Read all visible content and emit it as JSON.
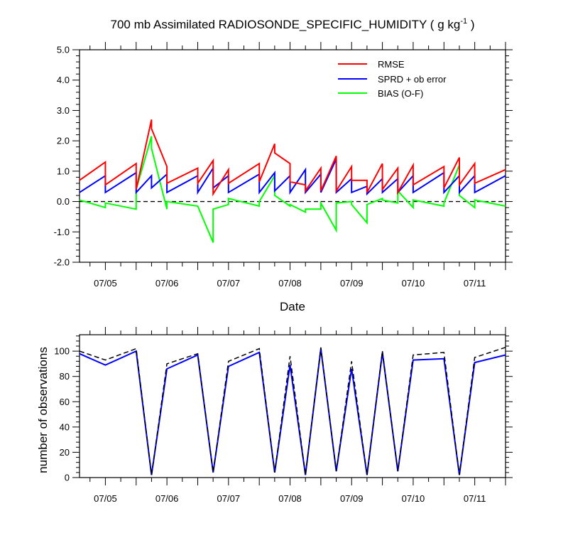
{
  "chart_data": [
    {
      "type": "line",
      "title": "700 mb Assimilated RADIOSONDE_SPECIFIC_HUMIDITY ( g kg",
      "title_unit_exponent": "-1",
      "title_close": " )",
      "xlabel": "Date",
      "ylabel": "",
      "ylim": [
        -2.0,
        5.0
      ],
      "yticks": [
        -2.0,
        -1.0,
        0.0,
        1.0,
        2.0,
        3.0,
        4.0,
        5.0
      ],
      "ytick_labels": [
        "-2.0",
        "-1.0",
        "0.0",
        "1.0",
        "2.0",
        "3.0",
        "4.0",
        "5.0"
      ],
      "x_range": [
        4.58,
        11.5
      ],
      "xticks": [
        5,
        6,
        7,
        8,
        9,
        10,
        11
      ],
      "xtick_labels": [
        "07/05",
        "07/06",
        "07/07",
        "07/08",
        "07/09",
        "07/10",
        "07/11"
      ],
      "reference_line": 0.0,
      "legend_position": "top-right",
      "series": [
        {
          "name": "RMSE",
          "color": "#ff0000",
          "x": [
            4.58,
            5.0,
            5.0,
            5.5,
            5.5,
            5.75,
            5.75,
            6.0,
            6.0,
            6.5,
            6.5,
            6.75,
            6.75,
            7.0,
            7.0,
            7.5,
            7.5,
            7.75,
            7.75,
            8.0,
            8.0,
            8.25,
            8.25,
            8.5,
            8.5,
            8.75,
            8.75,
            9.0,
            9.0,
            9.25,
            9.25,
            9.5,
            9.5,
            9.75,
            9.75,
            10.0,
            10.0,
            10.5,
            10.5,
            10.75,
            10.75,
            11.0,
            11.0,
            11.5
          ],
          "y": [
            0.7,
            1.3,
            0.55,
            1.25,
            0.4,
            2.7,
            2.4,
            1.15,
            0.6,
            1.1,
            0.6,
            1.35,
            0.25,
            1.05,
            0.6,
            1.25,
            0.65,
            1.9,
            1.6,
            1.25,
            0.65,
            0.55,
            0.35,
            1.1,
            0.35,
            1.5,
            0.35,
            1.15,
            0.7,
            0.7,
            0.3,
            1.25,
            0.4,
            1.1,
            0.3,
            1.2,
            0.55,
            1.15,
            0.45,
            1.45,
            0.55,
            1.25,
            0.6,
            1.05
          ]
        },
        {
          "name": "SPRD + ob error",
          "color": "#0000ff",
          "x": [
            4.58,
            5.0,
            5.0,
            5.5,
            5.5,
            5.75,
            5.75,
            6.0,
            6.0,
            6.5,
            6.5,
            6.75,
            6.75,
            7.0,
            7.0,
            7.5,
            7.5,
            7.75,
            7.75,
            8.0,
            8.0,
            8.25,
            8.25,
            8.5,
            8.5,
            8.75,
            8.75,
            9.0,
            9.0,
            9.25,
            9.25,
            9.5,
            9.5,
            9.75,
            9.75,
            10.0,
            10.0,
            10.5,
            10.5,
            10.75,
            10.75,
            11.0,
            11.0,
            11.5
          ],
          "y": [
            0.3,
            0.85,
            0.3,
            0.95,
            0.3,
            0.85,
            0.45,
            0.9,
            0.3,
            0.85,
            0.3,
            1.1,
            0.45,
            0.85,
            0.3,
            0.9,
            0.3,
            0.95,
            0.35,
            0.85,
            0.3,
            1.05,
            0.3,
            0.9,
            0.3,
            1.4,
            0.3,
            0.75,
            0.3,
            0.5,
            0.25,
            0.75,
            0.3,
            0.75,
            0.3,
            0.85,
            0.3,
            0.95,
            0.3,
            0.85,
            0.3,
            0.85,
            0.3,
            0.85
          ]
        },
        {
          "name": "BIAS (O-F)",
          "color": "#00ff00",
          "x": [
            4.58,
            5.0,
            5.0,
            5.5,
            5.5,
            5.75,
            5.75,
            6.0,
            6.0,
            6.5,
            6.5,
            6.75,
            6.75,
            7.0,
            7.0,
            7.5,
            7.5,
            7.75,
            7.75,
            8.0,
            8.0,
            8.25,
            8.25,
            8.5,
            8.5,
            8.75,
            8.75,
            9.0,
            9.0,
            9.25,
            9.25,
            9.5,
            9.5,
            9.75,
            9.75,
            10.0,
            10.0,
            10.5,
            10.5,
            10.75,
            10.75,
            11.0,
            11.0,
            11.5
          ],
          "y": [
            0.05,
            -0.2,
            -0.05,
            -0.25,
            0.4,
            2.15,
            1.75,
            -0.25,
            0.0,
            -0.15,
            -0.15,
            -1.35,
            -0.25,
            -0.1,
            0.1,
            -0.15,
            0.0,
            0.85,
            0.2,
            -0.15,
            -0.1,
            -0.35,
            -0.25,
            -0.25,
            -0.05,
            -0.95,
            -0.05,
            0.0,
            -0.1,
            -0.7,
            -0.1,
            0.1,
            0.05,
            -0.05,
            0.35,
            -0.2,
            0.05,
            -0.15,
            -0.05,
            1.2,
            0.2,
            -0.2,
            0.05,
            -0.15
          ]
        }
      ]
    },
    {
      "type": "line",
      "title": "",
      "xlabel": "",
      "ylabel": "number of observations",
      "ylim": [
        0,
        113
      ],
      "yticks": [
        0,
        20,
        40,
        60,
        80,
        100
      ],
      "ytick_labels": [
        "0",
        "20",
        "40",
        "60",
        "80",
        "100"
      ],
      "x_range": [
        4.58,
        11.5
      ],
      "xticks": [
        5,
        6,
        7,
        8,
        9,
        10,
        11
      ],
      "xtick_labels": [
        "07/05",
        "07/06",
        "07/07",
        "07/08",
        "07/09",
        "07/10",
        "07/11"
      ],
      "series": [
        {
          "style": "solid",
          "color": "#0000ff",
          "x": [
            4.58,
            5.0,
            5.5,
            5.75,
            6.0,
            6.5,
            6.75,
            7.0,
            7.5,
            7.75,
            8.0,
            8.25,
            8.5,
            8.75,
            9.0,
            9.25,
            9.5,
            9.75,
            10.0,
            10.5,
            10.75,
            11.0,
            11.5
          ],
          "y": [
            98,
            89,
            100,
            2,
            86,
            97,
            4,
            88,
            99,
            4,
            89,
            2,
            102,
            5,
            86,
            2,
            99,
            5,
            93,
            94,
            2,
            91,
            97
          ]
        },
        {
          "style": "dashed",
          "color": "#000000",
          "x": [
            4.58,
            5.0,
            5.5,
            5.75,
            6.0,
            6.5,
            6.75,
            7.0,
            7.5,
            7.75,
            8.0,
            8.25,
            8.5,
            8.75,
            9.0,
            9.25,
            9.5,
            9.75,
            10.0,
            10.5,
            10.75,
            11.0,
            11.5
          ],
          "y": [
            100,
            93,
            102,
            2,
            90,
            98,
            4,
            92,
            102,
            4,
            96,
            2,
            103,
            5,
            92,
            2,
            100,
            5,
            97,
            99,
            2,
            95,
            103
          ]
        }
      ]
    }
  ]
}
